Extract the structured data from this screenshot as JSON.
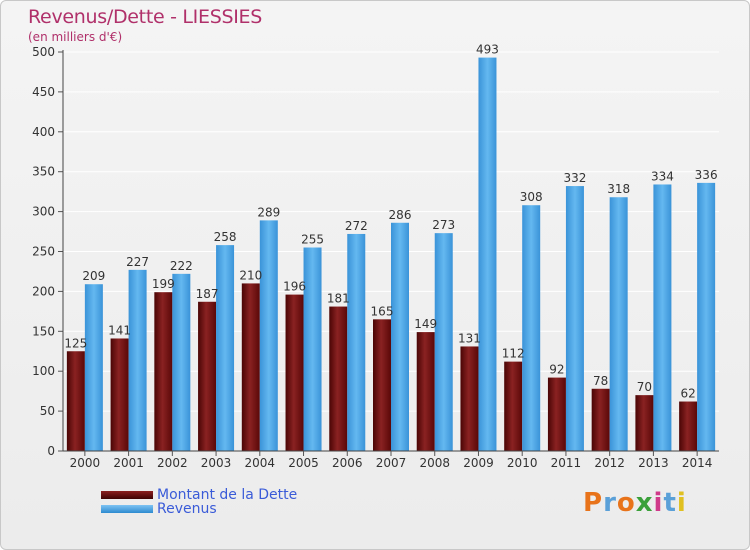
{
  "header": {
    "title": "Revenus/Dette - LIESSIES",
    "subtitle": "(en milliers d'€)"
  },
  "legend": {
    "debt_label": "Montant de la Dette",
    "revenue_label": "Revenus"
  },
  "logo": {
    "text": "Proxiti"
  },
  "colors": {
    "debt": "#6e0e0e",
    "revenue": "#4ea6e6",
    "title": "#b0306a",
    "legend_text": "#3a5bd8"
  },
  "chart_data": {
    "type": "bar",
    "title": "Revenus/Dette - LIESSIES",
    "subtitle": "(en milliers d'€)",
    "xlabel": "",
    "ylabel": "",
    "ylim": [
      0,
      500
    ],
    "yticks": [
      0,
      50,
      100,
      150,
      200,
      250,
      300,
      350,
      400,
      450,
      500
    ],
    "grid": true,
    "legend_position": "bottom-left",
    "categories": [
      "2000",
      "2001",
      "2002",
      "2003",
      "2004",
      "2005",
      "2006",
      "2007",
      "2008",
      "2009",
      "2010",
      "2011",
      "2012",
      "2013",
      "2014"
    ],
    "series": [
      {
        "name": "Montant de la Dette",
        "values": [
          125,
          141,
          199,
          187,
          210,
          196,
          181,
          165,
          149,
          131,
          112,
          92,
          78,
          70,
          62
        ]
      },
      {
        "name": "Revenus",
        "values": [
          209,
          227,
          222,
          258,
          289,
          255,
          272,
          286,
          273,
          493,
          308,
          332,
          318,
          334,
          336
        ]
      }
    ]
  }
}
